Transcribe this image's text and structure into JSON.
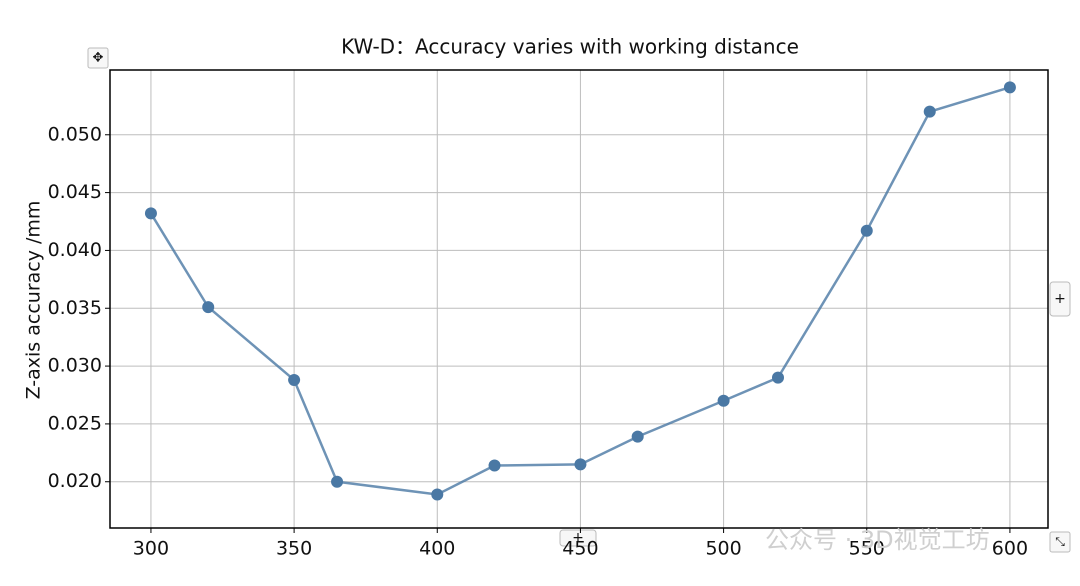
{
  "chart_data": {
    "type": "line",
    "title": "KW-D：Accuracy varies with working distance",
    "y_label": "Z-axis accuracy /mm",
    "x": [
      300,
      320,
      350,
      365,
      400,
      420,
      450,
      470,
      500,
      519,
      550,
      572,
      600
    ],
    "series": [
      {
        "color": "#4a78a4",
        "values": [
          0.0432,
          0.0351,
          0.0288,
          0.02,
          0.0189,
          0.0214,
          0.0215,
          0.0239,
          0.027,
          0.029,
          0.0417,
          0.052,
          0.0541
        ]
      }
    ],
    "xlim": [
      285.7,
      613.3
    ],
    "xticks": [
      300,
      350,
      400,
      450,
      500,
      550,
      600
    ],
    "ylim": [
      0.016,
      0.0556
    ],
    "yticks": [
      {
        "value": 0.02,
        "label": "0.020"
      },
      {
        "value": 0.025,
        "label": "0.025"
      },
      {
        "value": 0.03,
        "label": "0.030"
      },
      {
        "value": 0.035,
        "label": "0.035"
      },
      {
        "value": 0.04,
        "label": "0.040"
      },
      {
        "value": 0.045,
        "label": "0.045"
      },
      {
        "value": 0.05,
        "label": "0.050"
      }
    ],
    "grid": true,
    "watermark": "公众号 · 3D视觉工坊"
  }
}
